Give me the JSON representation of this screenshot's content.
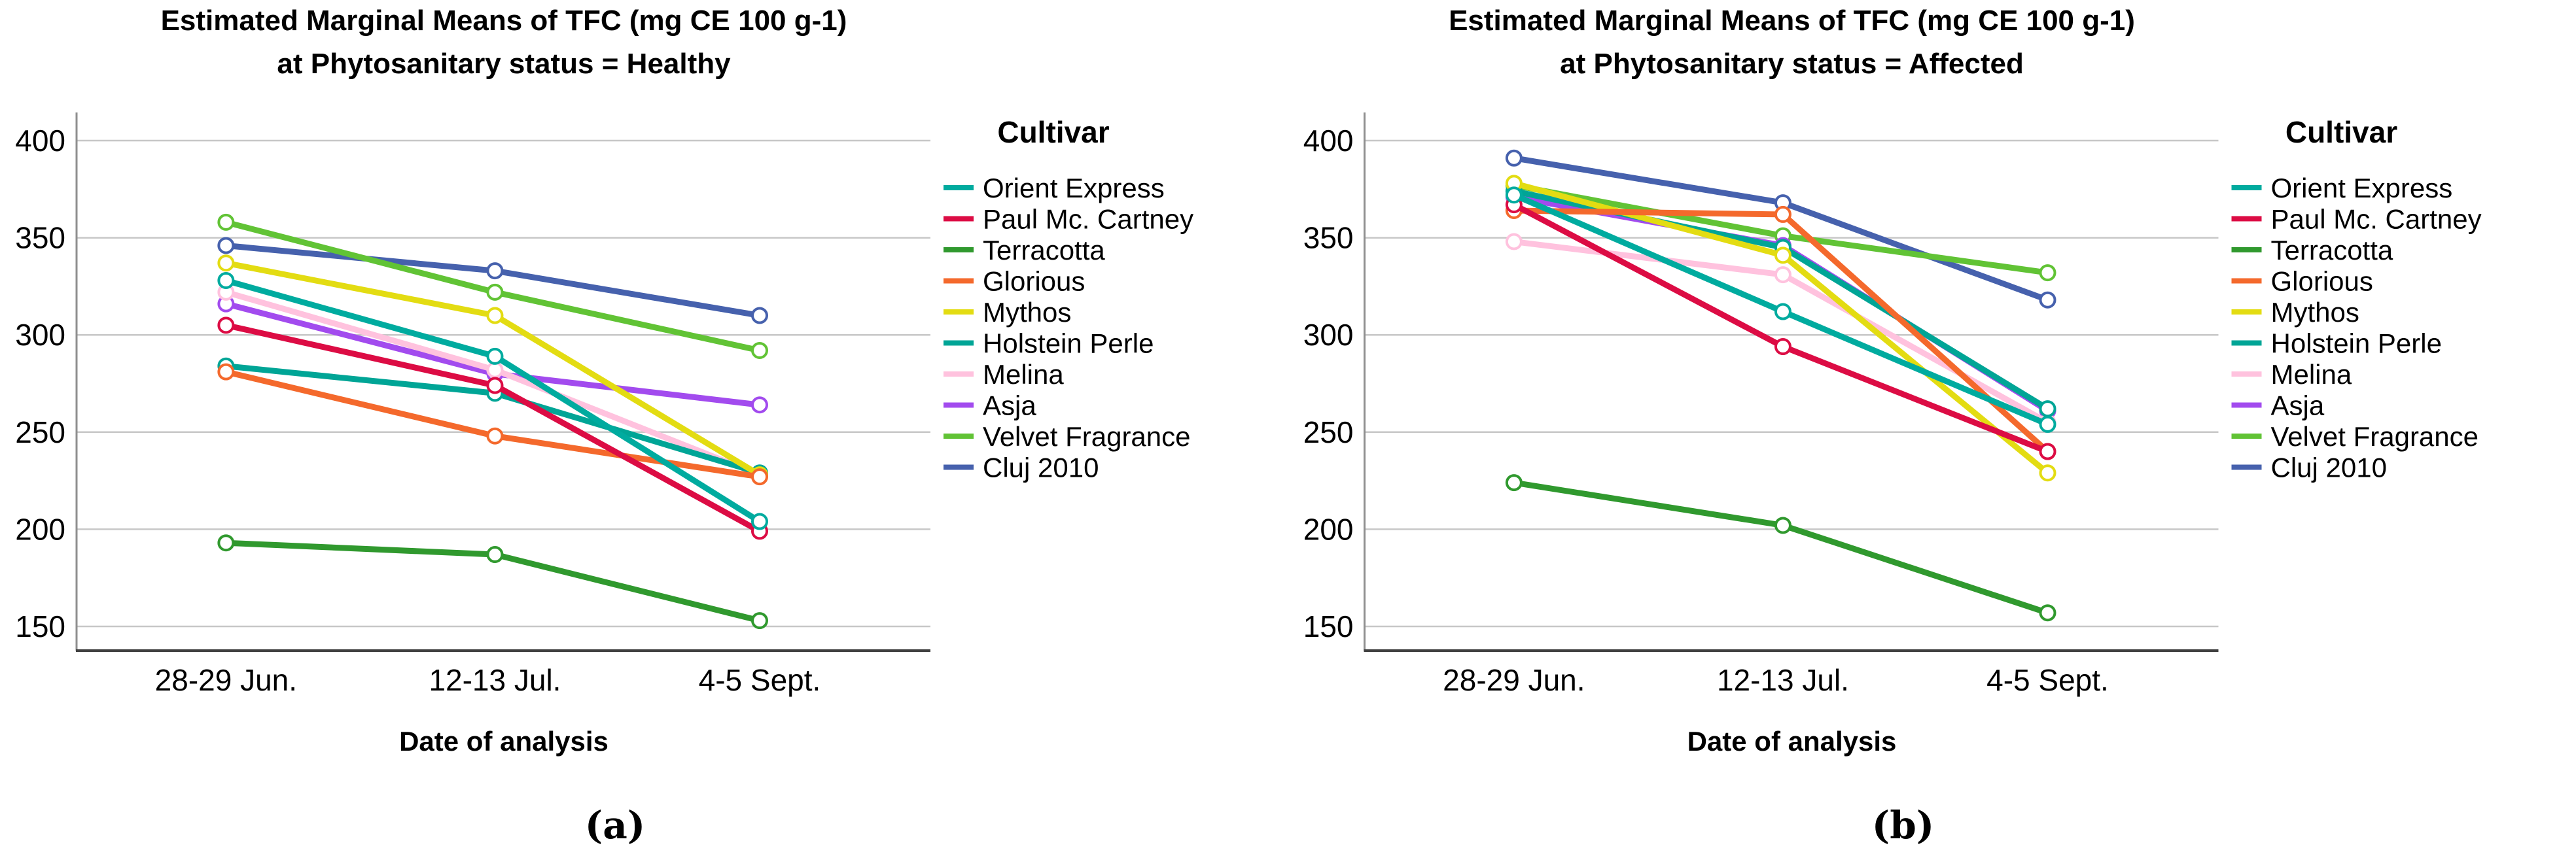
{
  "figure": {
    "background": "#ffffff",
    "gridline_color": "#c7c7c7",
    "y_axis_color": "#8f8f8f",
    "x_axis_color": "#404040",
    "captions": [
      "(a)",
      "(b)"
    ]
  },
  "chart_data": [
    {
      "type": "line",
      "title": "Estimated Marginal Means of TFC (mg CE 100 g-1)",
      "subtitle": "at Phytosanitary status = Healthy",
      "caption": "(a)",
      "xlabel": "Date of analysis",
      "ylabel": "",
      "categories": [
        "28-29 Jun.",
        "12-13 Jul.",
        "4-5 Sept."
      ],
      "yticks": [
        400,
        350,
        300,
        250,
        200,
        150
      ],
      "ylim": [
        150,
        400
      ],
      "grid": true,
      "legend_title": "Cultivar",
      "legend_position": "right",
      "marker": "open-circle",
      "series": [
        {
          "name": "Orient Express",
          "color": "#00ab9f",
          "values": [
            328,
            289,
            204
          ]
        },
        {
          "name": "Paul Mc. Cartney",
          "color": "#dc0c44",
          "values": [
            305,
            274,
            199
          ]
        },
        {
          "name": "Terracotta",
          "color": "#30992e",
          "values": [
            193,
            187,
            153
          ]
        },
        {
          "name": "Glorious",
          "color": "#f4692c",
          "values": [
            281,
            248,
            227
          ]
        },
        {
          "name": "Mythos",
          "color": "#e3dc12",
          "values": [
            337,
            310,
            228
          ]
        },
        {
          "name": "Holstein Perle",
          "color": "#00a596",
          "values": [
            284,
            270,
            229
          ]
        },
        {
          "name": "Melina",
          "color": "#ffc2de",
          "values": [
            322,
            282,
            228
          ]
        },
        {
          "name": "Asja",
          "color": "#a24bee",
          "values": [
            316,
            280,
            264
          ]
        },
        {
          "name": "Velvet Fragrance",
          "color": "#61c335",
          "values": [
            358,
            322,
            292
          ]
        },
        {
          "name": "Cluj 2010",
          "color": "#4661ad",
          "values": [
            346,
            333,
            310
          ]
        }
      ]
    },
    {
      "type": "line",
      "title": "Estimated Marginal Means of TFC (mg CE 100 g-1)",
      "subtitle": "at Phytosanitary status = Affected",
      "caption": "(b)",
      "xlabel": "Date of analysis",
      "ylabel": "",
      "categories": [
        "28-29 Jun.",
        "12-13 Jul.",
        "4-5 Sept."
      ],
      "yticks": [
        400,
        350,
        300,
        250,
        200,
        150
      ],
      "ylim": [
        150,
        400
      ],
      "grid": true,
      "legend_title": "Cultivar",
      "legend_position": "right",
      "marker": "open-circle",
      "series": [
        {
          "name": "Orient Express",
          "color": "#00ab9f",
          "values": [
            372,
            312,
            254
          ]
        },
        {
          "name": "Paul Mc. Cartney",
          "color": "#dc0c44",
          "values": [
            367,
            294,
            240
          ]
        },
        {
          "name": "Terracotta",
          "color": "#30992e",
          "values": [
            224,
            202,
            157
          ]
        },
        {
          "name": "Glorious",
          "color": "#f4692c",
          "values": [
            364,
            362,
            240
          ]
        },
        {
          "name": "Mythos",
          "color": "#e3dc12",
          "values": [
            378,
            341,
            229
          ]
        },
        {
          "name": "Holstein Perle",
          "color": "#00a596",
          "values": [
            374,
            345,
            262
          ]
        },
        {
          "name": "Melina",
          "color": "#ffc2de",
          "values": [
            348,
            331,
            255
          ]
        },
        {
          "name": "Asja",
          "color": "#a24bee",
          "values": [
            371,
            346,
            261
          ]
        },
        {
          "name": "Velvet Fragrance",
          "color": "#61c335",
          "values": [
            377,
            351,
            332
          ]
        },
        {
          "name": "Cluj 2010",
          "color": "#4661ad",
          "values": [
            391,
            368,
            318
          ]
        }
      ]
    }
  ]
}
